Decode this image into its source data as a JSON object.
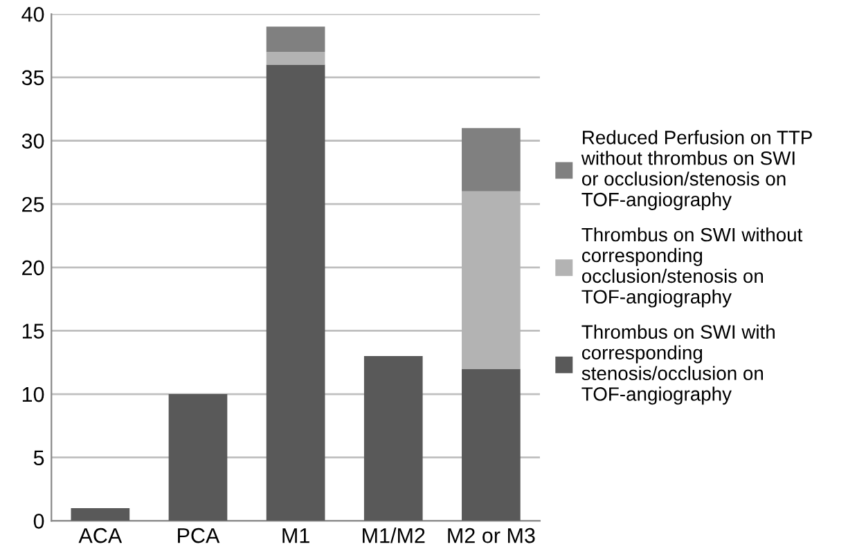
{
  "chart_data": {
    "type": "bar",
    "stacked": true,
    "categories": [
      "ACA",
      "PCA",
      "M1",
      "M1/M2",
      "M2 or M3"
    ],
    "series": [
      {
        "name": "Thrombus on SWI with\ncorresponding\nstenosis/occlusion on\nTOF-angiography",
        "color": "#595959",
        "values": [
          1,
          10,
          36,
          13,
          12
        ]
      },
      {
        "name": "Thrombus on SWI without\ncorresponding\nocclusion/stenosis on\nTOF-angiography",
        "color": "#b3b3b3",
        "values": [
          null,
          null,
          1,
          null,
          14
        ]
      },
      {
        "name": "Reduced Perfusion on TTP\nwithout thrombus on SWI\nor occlusion/stenosis on\nTOF-angiography",
        "color": "#808080",
        "values": [
          null,
          null,
          2,
          null,
          5
        ]
      }
    ],
    "ylim": [
      0,
      40
    ],
    "yticks": [
      0,
      5,
      10,
      15,
      20,
      25,
      30,
      35,
      40
    ],
    "grid": "y",
    "legend": "right"
  }
}
